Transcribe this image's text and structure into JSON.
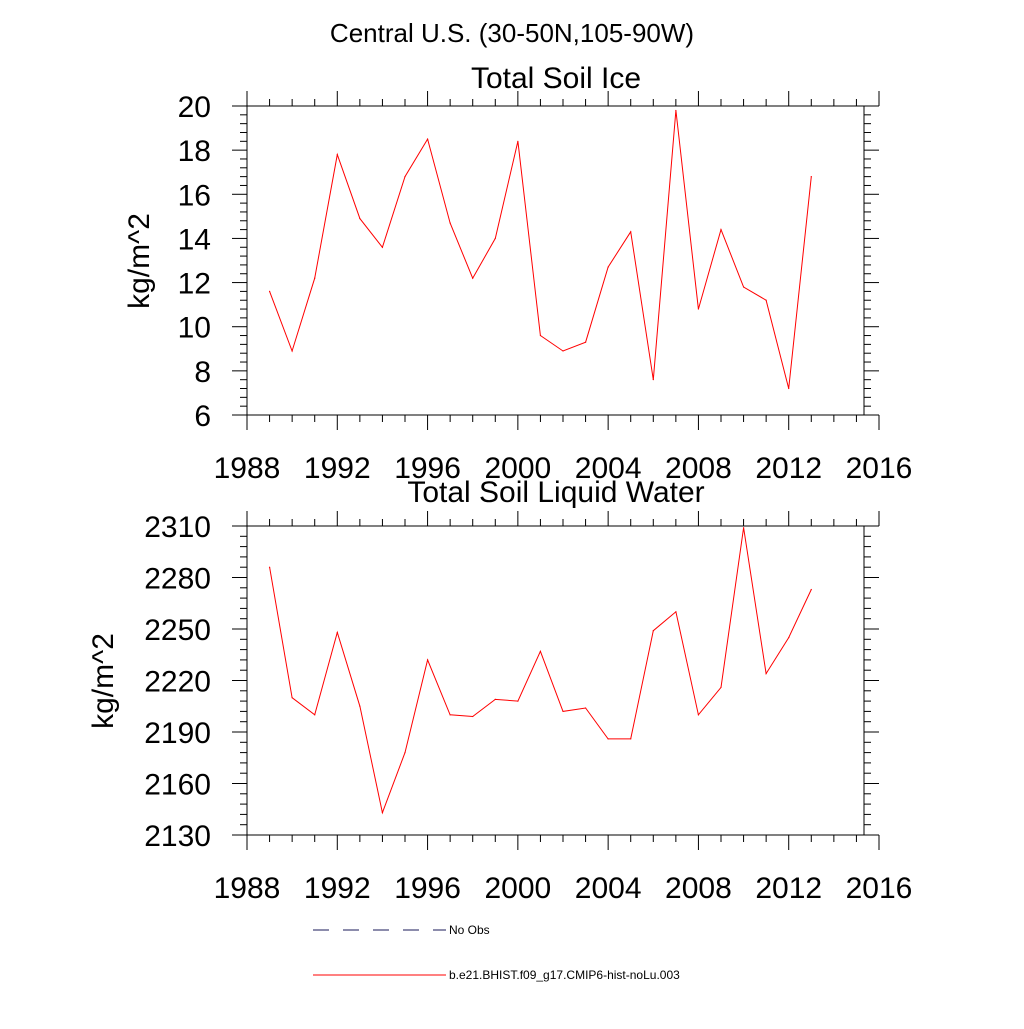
{
  "figure": {
    "suptitle": "Central U.S. (30-50N,105-90W)"
  },
  "chart_data": [
    {
      "type": "line",
      "title": "Total Soil Ice",
      "xlabel": "",
      "ylabel": "kg/m^2",
      "xlim": [
        1988,
        2016
      ],
      "ylim": [
        6,
        20
      ],
      "x_ticks": [
        1988,
        1992,
        1996,
        2000,
        2004,
        2008,
        2012,
        2016
      ],
      "y_ticks": [
        6,
        8,
        10,
        12,
        14,
        16,
        18,
        20
      ],
      "grid": false,
      "series": [
        {
          "color": "#ff0000",
          "x": [
            1989,
            1990,
            1991,
            1992,
            1993,
            1994,
            1995,
            1996,
            1997,
            1998,
            1999,
            2000,
            2001,
            2002,
            2003,
            2004,
            2005,
            2006,
            2007,
            2008,
            2009,
            2010,
            2011,
            2012,
            2013
          ],
          "values": [
            11.6,
            8.9,
            12.2,
            17.8,
            14.9,
            13.6,
            16.8,
            18.5,
            14.7,
            12.2,
            14.0,
            18.4,
            9.6,
            8.9,
            9.3,
            12.7,
            14.3,
            7.6,
            19.8,
            10.8,
            14.4,
            11.8,
            11.2,
            7.2,
            16.8
          ]
        }
      ]
    },
    {
      "type": "line",
      "title": "Total Soil Liquid Water",
      "xlabel": "",
      "ylabel": "kg/m^2",
      "xlim": [
        1988,
        2016
      ],
      "ylim": [
        2130,
        2310
      ],
      "x_ticks": [
        1988,
        1992,
        1996,
        2000,
        2004,
        2008,
        2012,
        2016
      ],
      "y_ticks": [
        2130,
        2160,
        2190,
        2220,
        2250,
        2280,
        2310
      ],
      "grid": false,
      "series": [
        {
          "color": "#ff0000",
          "x": [
            1989,
            1990,
            1991,
            1992,
            1993,
            1994,
            1995,
            1996,
            1997,
            1998,
            1999,
            2000,
            2001,
            2002,
            2003,
            2004,
            2005,
            2006,
            2007,
            2008,
            2009,
            2010,
            2011,
            2012,
            2013
          ],
          "values": [
            2286,
            2210,
            2200,
            2248,
            2205,
            2143,
            2178,
            2232,
            2200,
            2199,
            2209,
            2208,
            2237,
            2202,
            2204,
            2186,
            2186,
            2249,
            2260,
            2200,
            2216,
            2309,
            2224,
            2245,
            2273
          ]
        }
      ]
    }
  ],
  "legend": {
    "placement": "bottom",
    "items": [
      {
        "label": "No Obs",
        "color": "#1a1a5a",
        "style": "dashed"
      },
      {
        "label": "b.e21.BHIST.f09_g17.CMIP6-hist-noLu.003",
        "color": "#ff0000",
        "style": "solid"
      }
    ]
  }
}
